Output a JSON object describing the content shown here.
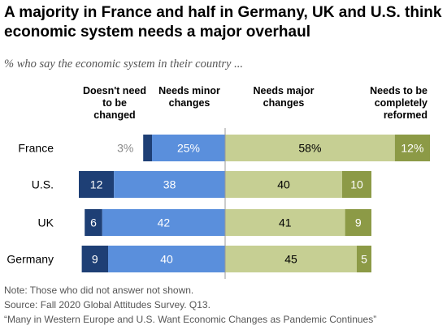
{
  "title": "A majority in France and half in Germany, UK and U.S. think economic system needs a major overhaul",
  "subtitle": "% who say the economic system in their country ...",
  "chart_data": {
    "type": "bar",
    "layout": "diverging-stacked-horizontal",
    "categories": [
      "France",
      "U.S.",
      "UK",
      "Germany"
    ],
    "series": [
      {
        "name": "Doesn't need to be changed",
        "values": [
          3,
          12,
          6,
          9
        ],
        "labels": [
          "3%",
          "12",
          "6",
          "9"
        ],
        "color": "#1e3f75"
      },
      {
        "name": "Needs minor changes",
        "values": [
          25,
          38,
          42,
          40
        ],
        "labels": [
          "25%",
          "38",
          "42",
          "40"
        ],
        "color": "#5a8fdc"
      },
      {
        "name": "Needs major changes",
        "values": [
          58,
          40,
          41,
          45
        ],
        "labels": [
          "58%",
          "40",
          "41",
          "45"
        ],
        "color": "#c6cf93"
      },
      {
        "name": "Needs to be completely reformed",
        "values": [
          12,
          10,
          9,
          5
        ],
        "labels": [
          "12%",
          "10",
          "9",
          "5"
        ],
        "color": "#8c9a46"
      }
    ],
    "column_headers": [
      "Doesn't need to be changed",
      "Needs minor changes",
      "Needs major changes",
      "Needs to be completely reformed"
    ],
    "xlabel": "",
    "ylabel": "",
    "grid": false,
    "legend": "column headers above bars"
  },
  "notes": [
    "Note: Those who did not answer not shown.",
    "Source: Fall 2020 Global Attitudes Survey. Q13.",
    "“Many in Western Europe and U.S. Want Economic Changes as Pandemic Continues”"
  ]
}
